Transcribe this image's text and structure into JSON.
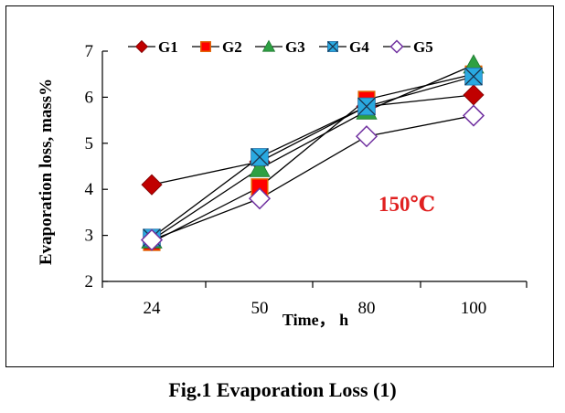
{
  "chart_data": {
    "type": "line",
    "categories": [
      "24",
      "50",
      "80",
      "100"
    ],
    "ylim": [
      2,
      7
    ],
    "yticks": [
      2,
      3,
      4,
      5,
      6,
      7
    ],
    "xlabel": "Time， h",
    "ylabel": "Evaporation loss, mass%",
    "annotation": "150℃",
    "series": [
      {
        "name": "G1",
        "values": [
          4.1,
          4.6,
          5.8,
          6.05
        ],
        "marker": "diamond",
        "color": "#c00000"
      },
      {
        "name": "G2",
        "values": [
          2.85,
          4.05,
          5.95,
          6.5
        ],
        "marker": "square",
        "color": "#ff0000"
      },
      {
        "name": "G3",
        "values": [
          2.9,
          4.45,
          5.7,
          6.7
        ],
        "marker": "triangle",
        "color": "#2ea043"
      },
      {
        "name": "G4",
        "values": [
          2.95,
          4.7,
          5.8,
          6.45
        ],
        "marker": "x-square",
        "color": "#29a9e0"
      },
      {
        "name": "G5",
        "values": [
          2.9,
          3.8,
          5.15,
          5.6
        ],
        "marker": "open-diamond",
        "color": "#7030a0"
      }
    ]
  },
  "caption": "Fig.1 Evaporation Loss (1)"
}
